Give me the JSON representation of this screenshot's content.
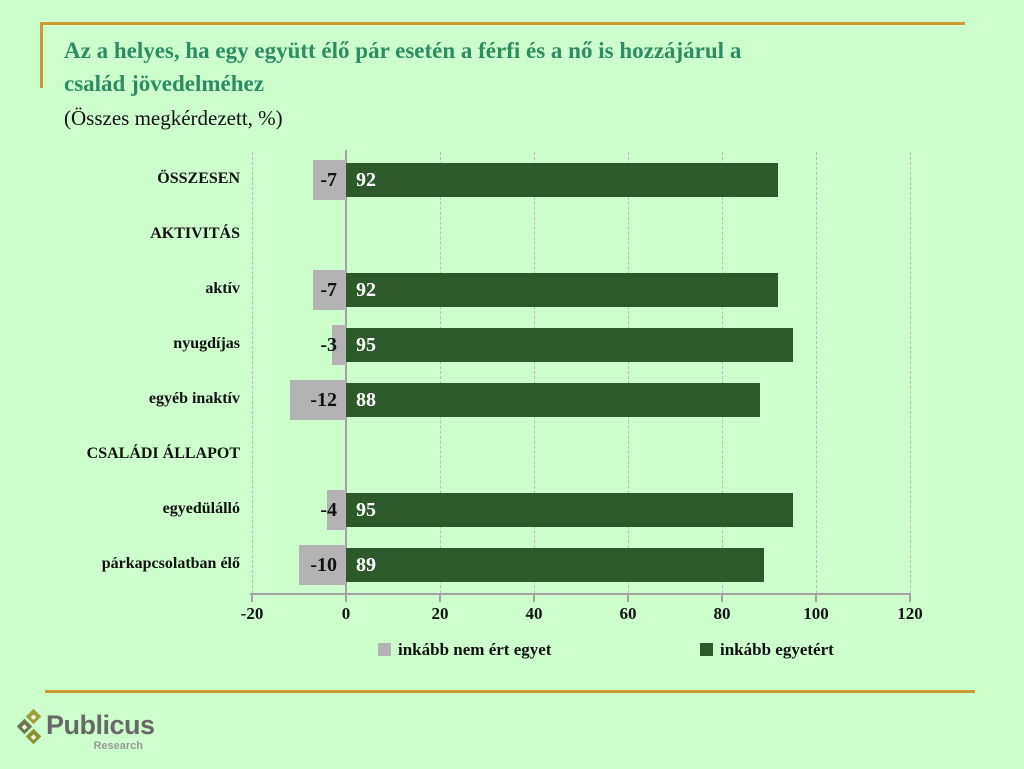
{
  "slide": {
    "background": "#ccffcc",
    "accent_line_color": "#cc9933",
    "title_color": "#2e8b62",
    "title_lines": [
      "Az a helyes, ha egy együtt élő pár esetén a férfi és a nő is hozzájárul a",
      "család jövedelméhez"
    ],
    "subtitle": "(Összes megkérdezett, %)"
  },
  "chart_data": {
    "type": "bar",
    "orientation": "horizontal",
    "title": "Az a helyes, ha egy együtt élő pár esetén a férfi és a nő is hozzájárul a család jövedelméhez (Összes megkérdezett, %)",
    "categories": [
      "ÖSSZESEN",
      "AKTIVITÁS",
      "aktív",
      "nyugdíjas",
      "egyéb inaktív",
      "CSALÁDI ÁLLAPOT",
      "egyedülálló",
      "párkapcsolatban élő"
    ],
    "header_rows_without_bars": [
      "AKTIVITÁS",
      "CSALÁDI ÁLLAPOT"
    ],
    "series": [
      {
        "name": "inkább nem ért egyet",
        "color": "#b3b3b3",
        "values": [
          -7,
          null,
          -7,
          -3,
          -12,
          null,
          -4,
          -10
        ]
      },
      {
        "name": "inkább egyetért",
        "color": "#2d5a2b",
        "values": [
          92,
          null,
          92,
          95,
          88,
          null,
          95,
          89
        ]
      }
    ],
    "xlim": [
      -20,
      120
    ],
    "xticks": [
      -20,
      0,
      20,
      40,
      60,
      80,
      100,
      120
    ],
    "grid": "vertical-dashed",
    "legend_position": "bottom"
  },
  "logo": {
    "name": "Publicus",
    "subname": "Research",
    "diamond_colors": [
      "#9aa13c",
      "#6e7a4e",
      "#8c922f"
    ]
  }
}
